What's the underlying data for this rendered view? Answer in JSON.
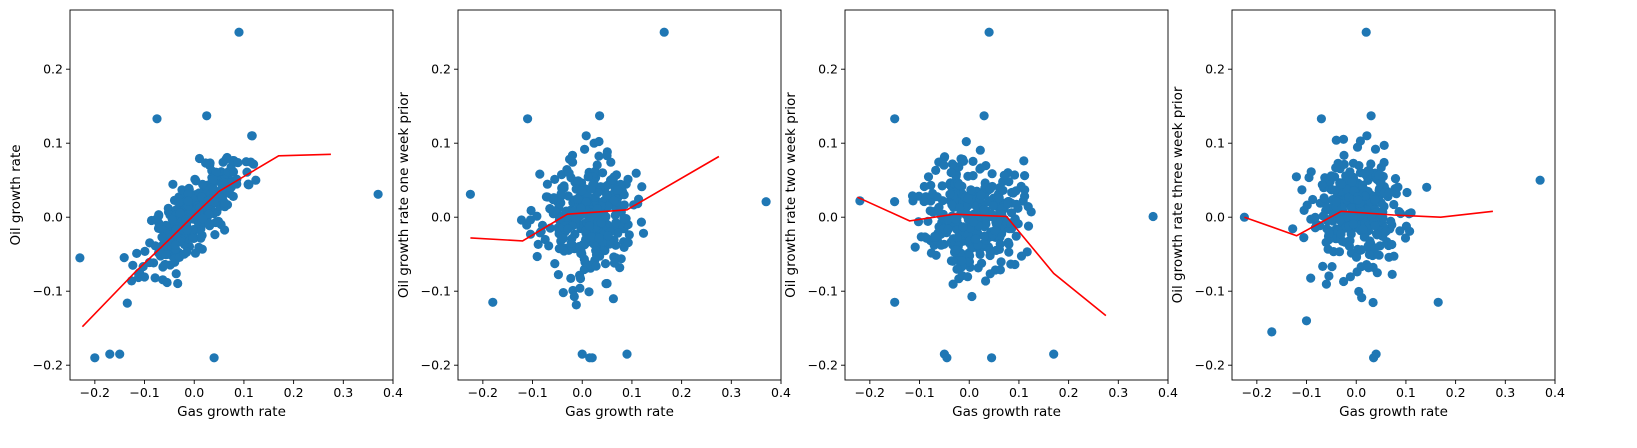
{
  "style": {
    "marker_color": "#1f77b4",
    "line_color": "#ff0000",
    "axis_color": "#000000",
    "background": "#ffffff"
  },
  "chart_data": [
    {
      "type": "scatter",
      "xlabel": "Gas growth rate",
      "ylabel": "Oil growth rate",
      "xlim": [
        -0.25,
        0.4
      ],
      "ylim": [
        -0.22,
        0.28
      ],
      "xticks": [
        -0.2,
        -0.1,
        0.0,
        0.1,
        0.2,
        0.3,
        0.4
      ],
      "yticks": [
        -0.2,
        -0.1,
        0.0,
        0.1,
        0.2
      ],
      "grid": false,
      "legend": "none",
      "trend_line": {
        "x": [
          -0.225,
          -0.12,
          -0.05,
          0.0,
          0.05,
          0.1,
          0.17,
          0.275
        ],
        "y": [
          -0.148,
          -0.075,
          -0.03,
          0.003,
          0.035,
          0.055,
          0.083,
          0.085
        ]
      },
      "outliers": {
        "x": [
          0.09,
          0.025,
          -0.075,
          0.37,
          -0.23,
          0.04,
          -0.2,
          -0.15,
          -0.17
        ],
        "y": [
          0.25,
          0.137,
          0.133,
          0.031,
          -0.055,
          -0.19,
          -0.19,
          -0.185,
          -0.185
        ]
      },
      "cluster": {
        "mode": "correlated",
        "slope": 0.58,
        "spread": 0.025,
        "cx": 0.0,
        "cy": 0.005,
        "sdx": 0.05,
        "sdy": 0.035,
        "n": 300,
        "seed": 11
      }
    },
    {
      "type": "scatter",
      "xlabel": "Gas growth rate",
      "ylabel": "Oil growth rate one week prior",
      "xlim": [
        -0.25,
        0.4
      ],
      "ylim": [
        -0.22,
        0.28
      ],
      "xticks": [
        -0.2,
        -0.1,
        0.0,
        0.1,
        0.2,
        0.3,
        0.4
      ],
      "yticks": [
        -0.2,
        -0.1,
        0.0,
        0.1,
        0.2
      ],
      "grid": false,
      "legend": "none",
      "trend_line": {
        "x": [
          -0.225,
          -0.12,
          -0.03,
          0.09,
          0.275
        ],
        "y": [
          -0.028,
          -0.032,
          0.004,
          0.01,
          0.082
        ]
      },
      "outliers": {
        "x": [
          0.165,
          0.035,
          -0.11,
          0.37,
          -0.225,
          0.0,
          0.015,
          0.02,
          0.09,
          -0.18
        ],
        "y": [
          0.25,
          0.137,
          0.133,
          0.021,
          0.031,
          -0.185,
          -0.19,
          -0.19,
          -0.185,
          -0.115
        ]
      },
      "cluster": {
        "mode": "round",
        "cx": 0.01,
        "cy": 0.0,
        "sdx": 0.045,
        "sdy": 0.04,
        "n": 320,
        "seed": 23
      }
    },
    {
      "type": "scatter",
      "xlabel": "Gas growth rate",
      "ylabel": "Oil growth rate two week prior",
      "xlim": [
        -0.25,
        0.4
      ],
      "ylim": [
        -0.22,
        0.28
      ],
      "xticks": [
        -0.2,
        -0.1,
        0.0,
        0.1,
        0.2,
        0.3,
        0.4
      ],
      "yticks": [
        -0.2,
        -0.1,
        0.0,
        0.1,
        0.2
      ],
      "grid": false,
      "legend": "none",
      "trend_line": {
        "x": [
          -0.225,
          -0.12,
          -0.03,
          0.075,
          0.17,
          0.275
        ],
        "y": [
          0.027,
          -0.005,
          0.004,
          0.001,
          -0.076,
          -0.133
        ]
      },
      "outliers": {
        "x": [
          0.04,
          0.03,
          -0.15,
          0.37,
          -0.22,
          -0.05,
          -0.045,
          0.045,
          0.17,
          -0.15
        ],
        "y": [
          0.25,
          0.137,
          0.133,
          0.001,
          0.022,
          -0.185,
          -0.19,
          -0.19,
          -0.185,
          -0.115
        ]
      },
      "cluster": {
        "mode": "round",
        "cx": 0.005,
        "cy": 0.005,
        "sdx": 0.05,
        "sdy": 0.04,
        "n": 320,
        "seed": 37
      }
    },
    {
      "type": "scatter",
      "xlabel": "Gas growth rate",
      "ylabel": "Oil growth rate three week prior",
      "xlim": [
        -0.25,
        0.4
      ],
      "ylim": [
        -0.22,
        0.28
      ],
      "xticks": [
        -0.2,
        -0.1,
        0.0,
        0.1,
        0.2,
        0.3,
        0.4
      ],
      "yticks": [
        -0.2,
        -0.1,
        0.0,
        0.1,
        0.2
      ],
      "grid": false,
      "legend": "none",
      "trend_line": {
        "x": [
          -0.225,
          -0.12,
          -0.03,
          0.075,
          0.17,
          0.275
        ],
        "y": [
          0.0,
          -0.025,
          0.008,
          0.003,
          0.0,
          0.008
        ]
      },
      "outliers": {
        "x": [
          0.02,
          0.03,
          -0.07,
          0.37,
          -0.225,
          -0.17,
          0.035,
          0.04,
          0.165,
          -0.1
        ],
        "y": [
          0.25,
          0.137,
          0.133,
          0.05,
          0.0,
          -0.155,
          -0.19,
          -0.185,
          -0.115,
          -0.14
        ]
      },
      "cluster": {
        "mode": "round",
        "cx": 0.005,
        "cy": 0.005,
        "sdx": 0.05,
        "sdy": 0.04,
        "n": 320,
        "seed": 53
      }
    }
  ]
}
